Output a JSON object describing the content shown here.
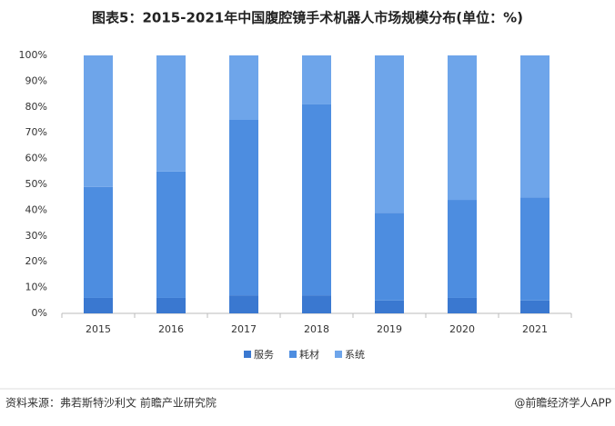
{
  "chart_data": {
    "type": "stacked_bar",
    "title": "图表5：2015-2021年中国腹腔镜手术机器人市场规模分布(单位：%)",
    "categories": [
      "2015",
      "2016",
      "2017",
      "2018",
      "2019",
      "2020",
      "2021"
    ],
    "series": [
      {
        "name": "服务",
        "color": "#3a78d0",
        "values": [
          6,
          6,
          7,
          7,
          5,
          6,
          5
        ]
      },
      {
        "name": "耗材",
        "color": "#4d8de0",
        "values": [
          43,
          49,
          68,
          74,
          34,
          38,
          40
        ]
      },
      {
        "name": "系统",
        "color": "#6ea5ea",
        "values": [
          51,
          45,
          25,
          19,
          61,
          56,
          55
        ]
      }
    ],
    "ylim": [
      0,
      100
    ],
    "yticks": [
      {
        "value": 0,
        "label": "0%"
      },
      {
        "value": 10,
        "label": "10%"
      },
      {
        "value": 20,
        "label": "20%"
      },
      {
        "value": 30,
        "label": "30%"
      },
      {
        "value": 40,
        "label": "40%"
      },
      {
        "value": 50,
        "label": "50%"
      },
      {
        "value": 60,
        "label": "60%"
      },
      {
        "value": 70,
        "label": "70%"
      },
      {
        "value": 80,
        "label": "80%"
      },
      {
        "value": 90,
        "label": "90%"
      },
      {
        "value": 100,
        "label": "100%"
      }
    ],
    "grid": false
  },
  "footer": {
    "source": "资料来源：弗若斯特沙利文 前瞻产业研究院",
    "brand": "@前瞻经济学人APP"
  }
}
